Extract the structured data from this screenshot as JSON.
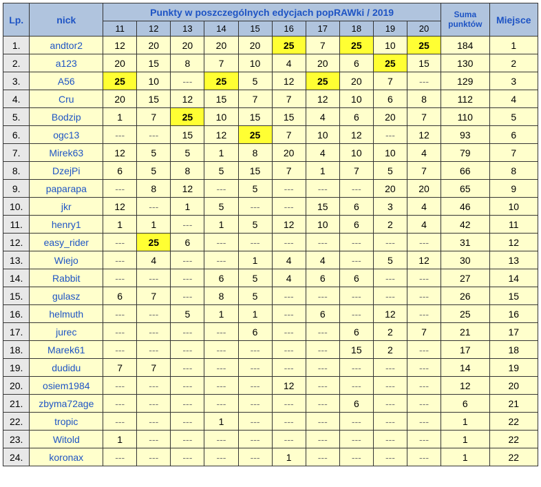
{
  "headers": {
    "lp": "Lp.",
    "nick": "nick",
    "editions_title": "Punkty w poszczególnych edycjach popRAWki / 2019",
    "sum": "Suma\npunktów",
    "place": "Miejsce",
    "edition_numbers": [
      "11",
      "12",
      "13",
      "14",
      "15",
      "16",
      "17",
      "18",
      "19",
      "20"
    ]
  },
  "rows": [
    {
      "lp": "1.",
      "nick": "andtor2",
      "vals": [
        {
          "v": "12"
        },
        {
          "v": "20"
        },
        {
          "v": "20"
        },
        {
          "v": "20"
        },
        {
          "v": "20"
        },
        {
          "v": "25",
          "hl": true
        },
        {
          "v": "7"
        },
        {
          "v": "25",
          "hl": true
        },
        {
          "v": "10"
        },
        {
          "v": "25",
          "hl": true
        }
      ],
      "sum": "184",
      "place": "1"
    },
    {
      "lp": "2.",
      "nick": "a123",
      "vals": [
        {
          "v": "20"
        },
        {
          "v": "15"
        },
        {
          "v": "8"
        },
        {
          "v": "7"
        },
        {
          "v": "10"
        },
        {
          "v": "4"
        },
        {
          "v": "20"
        },
        {
          "v": "6"
        },
        {
          "v": "25",
          "hl": true
        },
        {
          "v": "15"
        }
      ],
      "sum": "130",
      "place": "2"
    },
    {
      "lp": "3.",
      "nick": "A56",
      "vals": [
        {
          "v": "25",
          "hl": true
        },
        {
          "v": "10"
        },
        {
          "v": "---"
        },
        {
          "v": "25",
          "hl": true
        },
        {
          "v": "5"
        },
        {
          "v": "12"
        },
        {
          "v": "25",
          "hl": true
        },
        {
          "v": "20"
        },
        {
          "v": "7"
        },
        {
          "v": "---"
        }
      ],
      "sum": "129",
      "place": "3"
    },
    {
      "lp": "4.",
      "nick": "Cru",
      "vals": [
        {
          "v": "20"
        },
        {
          "v": "15"
        },
        {
          "v": "12"
        },
        {
          "v": "15"
        },
        {
          "v": "7"
        },
        {
          "v": "7"
        },
        {
          "v": "12"
        },
        {
          "v": "10"
        },
        {
          "v": "6"
        },
        {
          "v": "8"
        }
      ],
      "sum": "112",
      "place": "4"
    },
    {
      "lp": "5.",
      "nick": "Bodzip",
      "vals": [
        {
          "v": "1"
        },
        {
          "v": "7"
        },
        {
          "v": "25",
          "hl": true
        },
        {
          "v": "10"
        },
        {
          "v": "15"
        },
        {
          "v": "15"
        },
        {
          "v": "4"
        },
        {
          "v": "6"
        },
        {
          "v": "20"
        },
        {
          "v": "7"
        }
      ],
      "sum": "110",
      "place": "5"
    },
    {
      "lp": "6.",
      "nick": "ogc13",
      "vals": [
        {
          "v": "---"
        },
        {
          "v": "---"
        },
        {
          "v": "15"
        },
        {
          "v": "12"
        },
        {
          "v": "25",
          "hl": true
        },
        {
          "v": "7"
        },
        {
          "v": "10"
        },
        {
          "v": "12"
        },
        {
          "v": "---"
        },
        {
          "v": "12"
        }
      ],
      "sum": "93",
      "place": "6"
    },
    {
      "lp": "7.",
      "nick": "Mirek63",
      "vals": [
        {
          "v": "12"
        },
        {
          "v": "5"
        },
        {
          "v": "5"
        },
        {
          "v": "1"
        },
        {
          "v": "8"
        },
        {
          "v": "20"
        },
        {
          "v": "4"
        },
        {
          "v": "10"
        },
        {
          "v": "10"
        },
        {
          "v": "4"
        }
      ],
      "sum": "79",
      "place": "7"
    },
    {
      "lp": "8.",
      "nick": "DzejPi",
      "vals": [
        {
          "v": "6"
        },
        {
          "v": "5"
        },
        {
          "v": "8"
        },
        {
          "v": "5"
        },
        {
          "v": "15"
        },
        {
          "v": "7"
        },
        {
          "v": "1"
        },
        {
          "v": "7"
        },
        {
          "v": "5"
        },
        {
          "v": "7"
        }
      ],
      "sum": "66",
      "place": "8"
    },
    {
      "lp": "9.",
      "nick": "paparapa",
      "vals": [
        {
          "v": "---"
        },
        {
          "v": "8"
        },
        {
          "v": "12"
        },
        {
          "v": "---"
        },
        {
          "v": "5"
        },
        {
          "v": "---"
        },
        {
          "v": "---"
        },
        {
          "v": "---"
        },
        {
          "v": "20"
        },
        {
          "v": "20"
        }
      ],
      "sum": "65",
      "place": "9"
    },
    {
      "lp": "10.",
      "nick": "jkr",
      "vals": [
        {
          "v": "12"
        },
        {
          "v": "---"
        },
        {
          "v": "1"
        },
        {
          "v": "5"
        },
        {
          "v": "---"
        },
        {
          "v": "---"
        },
        {
          "v": "15"
        },
        {
          "v": "6"
        },
        {
          "v": "3"
        },
        {
          "v": "4"
        }
      ],
      "sum": "46",
      "place": "10"
    },
    {
      "lp": "11.",
      "nick": "henry1",
      "vals": [
        {
          "v": "1"
        },
        {
          "v": "1"
        },
        {
          "v": "---"
        },
        {
          "v": "1"
        },
        {
          "v": "5"
        },
        {
          "v": "12"
        },
        {
          "v": "10"
        },
        {
          "v": "6"
        },
        {
          "v": "2"
        },
        {
          "v": "4"
        }
      ],
      "sum": "42",
      "place": "11"
    },
    {
      "lp": "12.",
      "nick": "easy_rider",
      "vals": [
        {
          "v": "---"
        },
        {
          "v": "25",
          "hl": true
        },
        {
          "v": "6"
        },
        {
          "v": "---"
        },
        {
          "v": "---"
        },
        {
          "v": "---"
        },
        {
          "v": "---"
        },
        {
          "v": "---"
        },
        {
          "v": "---"
        },
        {
          "v": "---"
        }
      ],
      "sum": "31",
      "place": "12"
    },
    {
      "lp": "13.",
      "nick": "Wiejo",
      "vals": [
        {
          "v": "---"
        },
        {
          "v": "4"
        },
        {
          "v": "---"
        },
        {
          "v": "---"
        },
        {
          "v": "1"
        },
        {
          "v": "4"
        },
        {
          "v": "4"
        },
        {
          "v": "---"
        },
        {
          "v": "5"
        },
        {
          "v": "12"
        }
      ],
      "sum": "30",
      "place": "13"
    },
    {
      "lp": "14.",
      "nick": "Rabbit",
      "vals": [
        {
          "v": "---"
        },
        {
          "v": "---"
        },
        {
          "v": "---"
        },
        {
          "v": "6"
        },
        {
          "v": "5"
        },
        {
          "v": "4"
        },
        {
          "v": "6"
        },
        {
          "v": "6"
        },
        {
          "v": "---"
        },
        {
          "v": "---"
        }
      ],
      "sum": "27",
      "place": "14"
    },
    {
      "lp": "15.",
      "nick": "gulasz",
      "vals": [
        {
          "v": "6"
        },
        {
          "v": "7"
        },
        {
          "v": "---"
        },
        {
          "v": "8"
        },
        {
          "v": "5"
        },
        {
          "v": "---"
        },
        {
          "v": "---"
        },
        {
          "v": "---"
        },
        {
          "v": "---"
        },
        {
          "v": "---"
        }
      ],
      "sum": "26",
      "place": "15"
    },
    {
      "lp": "16.",
      "nick": "helmuth",
      "vals": [
        {
          "v": "---"
        },
        {
          "v": "---"
        },
        {
          "v": "5"
        },
        {
          "v": "1"
        },
        {
          "v": "1"
        },
        {
          "v": "---"
        },
        {
          "v": "6"
        },
        {
          "v": "---"
        },
        {
          "v": "12"
        },
        {
          "v": "---"
        }
      ],
      "sum": "25",
      "place": "16"
    },
    {
      "lp": "17.",
      "nick": "jurec",
      "vals": [
        {
          "v": "---"
        },
        {
          "v": "---"
        },
        {
          "v": "---"
        },
        {
          "v": "---"
        },
        {
          "v": "6"
        },
        {
          "v": "---"
        },
        {
          "v": "---"
        },
        {
          "v": "6"
        },
        {
          "v": "2"
        },
        {
          "v": "7"
        }
      ],
      "sum": "21",
      "place": "17"
    },
    {
      "lp": "18.",
      "nick": "Marek61",
      "vals": [
        {
          "v": "---"
        },
        {
          "v": "---"
        },
        {
          "v": "---"
        },
        {
          "v": "---"
        },
        {
          "v": "---"
        },
        {
          "v": "---"
        },
        {
          "v": "---"
        },
        {
          "v": "15"
        },
        {
          "v": "2"
        },
        {
          "v": "---"
        }
      ],
      "sum": "17",
      "place": "18"
    },
    {
      "lp": "19.",
      "nick": "dudidu",
      "vals": [
        {
          "v": "7"
        },
        {
          "v": "7"
        },
        {
          "v": "---"
        },
        {
          "v": "---"
        },
        {
          "v": "---"
        },
        {
          "v": "---"
        },
        {
          "v": "---"
        },
        {
          "v": "---"
        },
        {
          "v": "---"
        },
        {
          "v": "---"
        }
      ],
      "sum": "14",
      "place": "19"
    },
    {
      "lp": "20.",
      "nick": "osiem1984",
      "vals": [
        {
          "v": "---"
        },
        {
          "v": "---"
        },
        {
          "v": "---"
        },
        {
          "v": "---"
        },
        {
          "v": "---"
        },
        {
          "v": "12"
        },
        {
          "v": "---"
        },
        {
          "v": "---"
        },
        {
          "v": "---"
        },
        {
          "v": "---"
        }
      ],
      "sum": "12",
      "place": "20"
    },
    {
      "lp": "21.",
      "nick": "zbyma72age",
      "vals": [
        {
          "v": "---"
        },
        {
          "v": "---"
        },
        {
          "v": "---"
        },
        {
          "v": "---"
        },
        {
          "v": "---"
        },
        {
          "v": "---"
        },
        {
          "v": "---"
        },
        {
          "v": "6"
        },
        {
          "v": "---"
        },
        {
          "v": "---"
        }
      ],
      "sum": "6",
      "place": "21"
    },
    {
      "lp": "22.",
      "nick": "tropic",
      "vals": [
        {
          "v": "---"
        },
        {
          "v": "---"
        },
        {
          "v": "---"
        },
        {
          "v": "1"
        },
        {
          "v": "---"
        },
        {
          "v": "---"
        },
        {
          "v": "---"
        },
        {
          "v": "---"
        },
        {
          "v": "---"
        },
        {
          "v": "---"
        }
      ],
      "sum": "1",
      "place": "22"
    },
    {
      "lp": "23.",
      "nick": "Witold",
      "vals": [
        {
          "v": "1"
        },
        {
          "v": "---"
        },
        {
          "v": "---"
        },
        {
          "v": "---"
        },
        {
          "v": "---"
        },
        {
          "v": "---"
        },
        {
          "v": "---"
        },
        {
          "v": "---"
        },
        {
          "v": "---"
        },
        {
          "v": "---"
        }
      ],
      "sum": "1",
      "place": "22"
    },
    {
      "lp": "24.",
      "nick": "koronax",
      "vals": [
        {
          "v": "---"
        },
        {
          "v": "---"
        },
        {
          "v": "---"
        },
        {
          "v": "---"
        },
        {
          "v": "---"
        },
        {
          "v": "1"
        },
        {
          "v": "---"
        },
        {
          "v": "---"
        },
        {
          "v": "---"
        },
        {
          "v": "---"
        }
      ],
      "sum": "1",
      "place": "22"
    }
  ]
}
